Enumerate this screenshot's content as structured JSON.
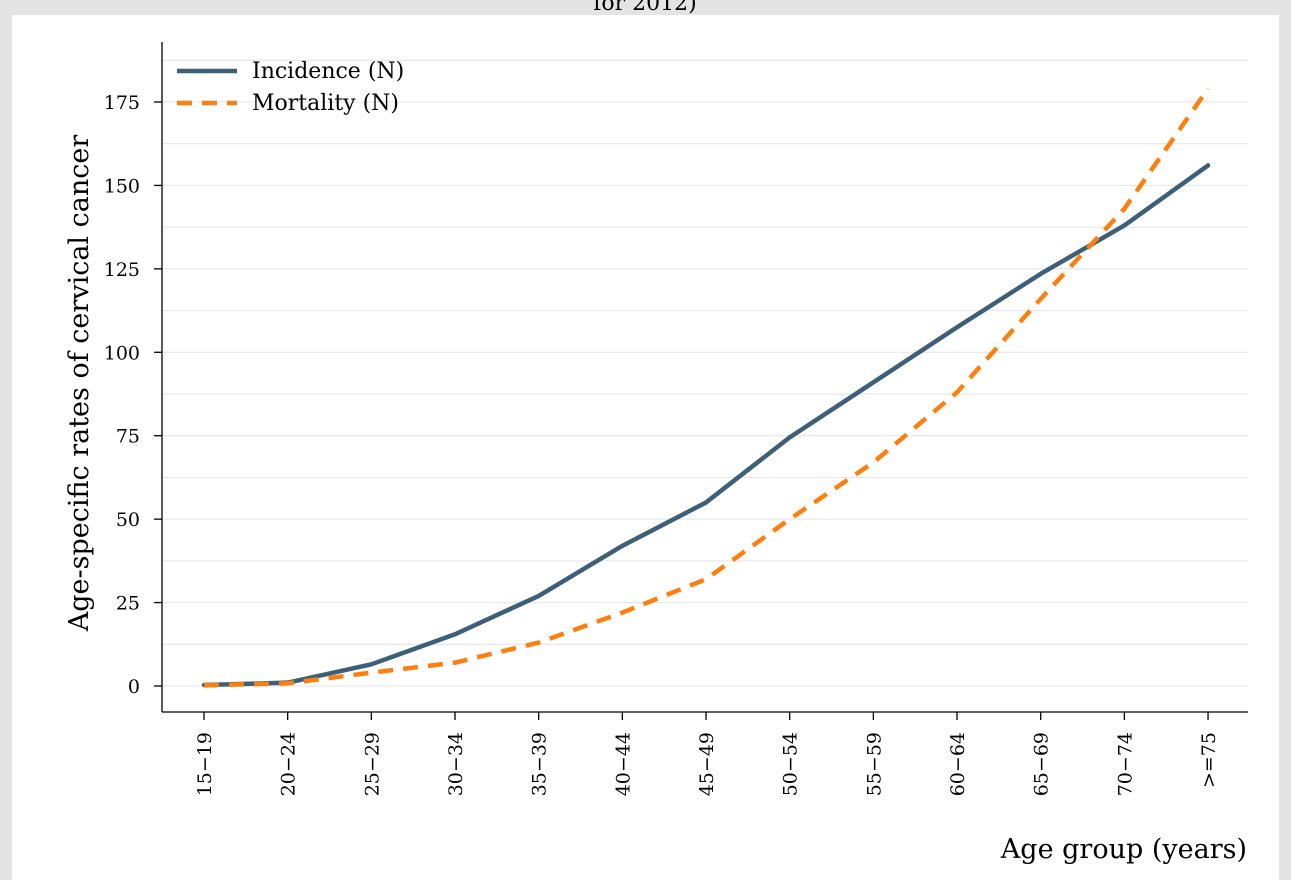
{
  "chart_data": {
    "type": "line",
    "title_fragment": "for 2012)",
    "xlabel": "Age group (years)",
    "ylabel": "Age-specific rates of cervical cancer",
    "categories": [
      "15−19",
      "20−24",
      "25−29",
      "30−34",
      "35−39",
      "40−44",
      "45−49",
      "50−54",
      "55−59",
      "60−64",
      "65−69",
      "70−74",
      ">=75"
    ],
    "ylim": [
      -8,
      195
    ],
    "yticks": [
      0,
      25,
      50,
      75,
      100,
      125,
      150,
      175
    ],
    "grid": true,
    "legend_position": "top-left",
    "series": [
      {
        "name": "Incidence (N)",
        "style": "solid",
        "color": "#3e5f78",
        "values": [
          0.3,
          1.0,
          6.5,
          15.5,
          27.0,
          42.0,
          55.0,
          74.5,
          91.0,
          107.5,
          123.5,
          138.0,
          156.0
        ]
      },
      {
        "name": "Mortality (N)",
        "style": "dashed",
        "color": "#ff7f0e",
        "values": [
          0.2,
          0.8,
          4.0,
          7.0,
          13.0,
          22.0,
          32.0,
          50.0,
          67.0,
          88.0,
          116.0,
          143.0,
          179.0
        ]
      }
    ]
  }
}
